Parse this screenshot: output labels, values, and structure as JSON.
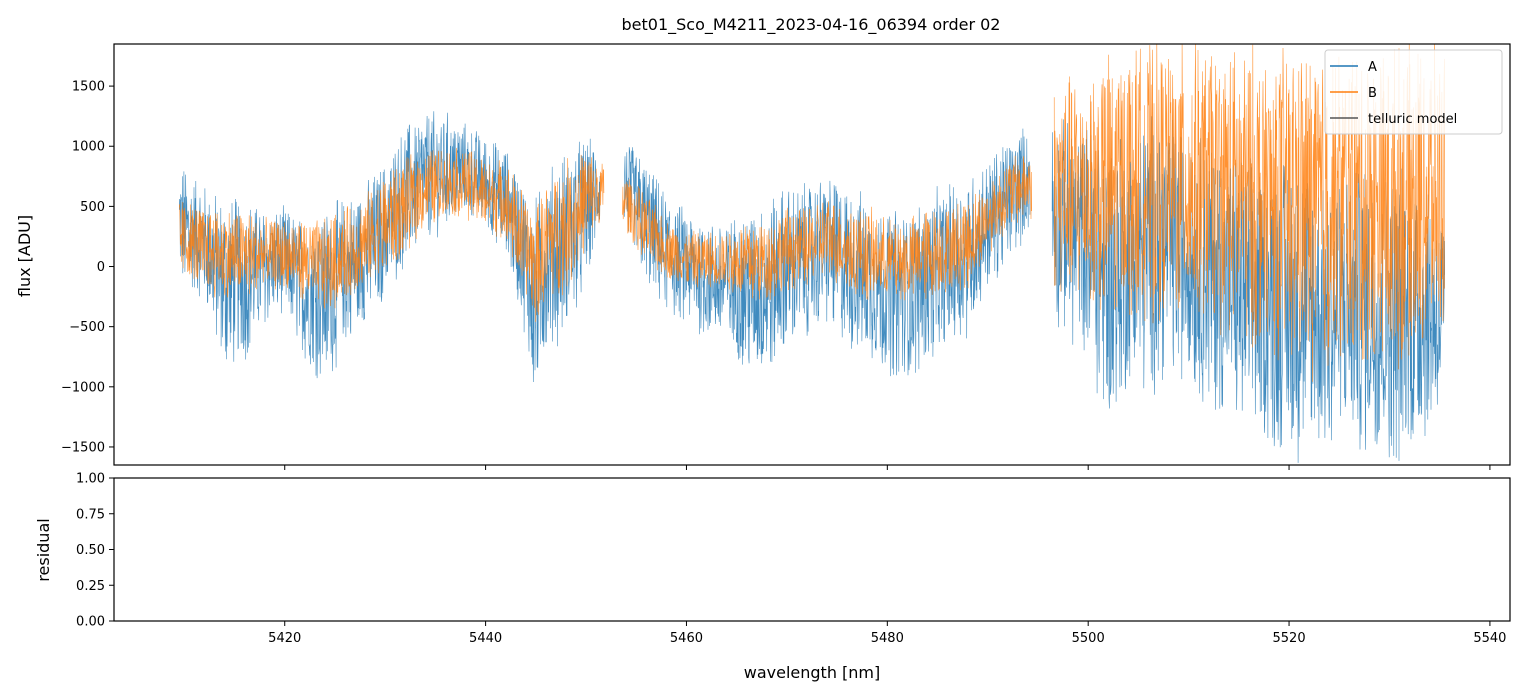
{
  "chart_data": [
    {
      "type": "line",
      "title": "bet01_Sco_M4211_2023-04-16_06394  order 02",
      "xlabel": "",
      "ylabel": "flux [ADU]",
      "xlim": [
        5403,
        5542
      ],
      "ylim": [
        -1650,
        1850
      ],
      "yticks": [
        -1500,
        -1000,
        -500,
        0,
        500,
        1000,
        1500
      ],
      "yticklabels": [
        "−1500",
        "−1000",
        "−500",
        "0",
        "500",
        "1000",
        "1500"
      ],
      "legend_location": "top-right",
      "grid": false,
      "series": [
        {
          "name": "A",
          "color": "#1f77b4",
          "x_range": [
            5409.5,
            5535.5
          ],
          "gaps": [
            [
              5451.4,
              5453.8
            ],
            [
              5494.2,
              5496.4
            ]
          ],
          "envelope_x": [
            5409.5,
            5412,
            5414,
            5416,
            5418,
            5420,
            5422,
            5424,
            5426,
            5428,
            5430,
            5432,
            5434,
            5436,
            5438,
            5440,
            5442,
            5444,
            5445,
            5446,
            5448,
            5450,
            5451.4,
            5453.8,
            5456,
            5458,
            5460,
            5462,
            5464,
            5466,
            5468,
            5470,
            5472,
            5474,
            5476,
            5478,
            5480,
            5482,
            5484,
            5486,
            5488,
            5490,
            5492,
            5494.2,
            5496.4,
            5498,
            5500,
            5502,
            5504,
            5506,
            5508,
            5510,
            5512,
            5514,
            5516,
            5518,
            5520,
            5522,
            5524,
            5526,
            5528,
            5530,
            5532,
            5534,
            5535.5
          ],
          "envelope_low": [
            -200,
            -300,
            -900,
            -800,
            -500,
            -400,
            -800,
            -1000,
            -700,
            -500,
            -300,
            0,
            200,
            300,
            400,
            300,
            100,
            -600,
            -1300,
            -700,
            -600,
            -200,
            300,
            300,
            -200,
            -400,
            -500,
            -600,
            -700,
            -900,
            -1000,
            -700,
            -600,
            -500,
            -700,
            -800,
            -900,
            -1000,
            -800,
            -700,
            -600,
            -200,
            0,
            300,
            -500,
            -600,
            -800,
            -1500,
            -1000,
            -1100,
            -900,
            -1000,
            -1200,
            -1300,
            -1400,
            -1500,
            -1650,
            -1650,
            -1650,
            -1500,
            -1600,
            -1650,
            -1650,
            -1400,
            -1300
          ],
          "envelope_high": [
            900,
            700,
            600,
            600,
            500,
            500,
            400,
            500,
            600,
            700,
            900,
            1200,
            1300,
            1300,
            1200,
            1100,
            1000,
            700,
            600,
            800,
            1000,
            1100,
            1000,
            1100,
            900,
            600,
            500,
            400,
            400,
            500,
            600,
            700,
            700,
            800,
            700,
            600,
            500,
            500,
            600,
            700,
            800,
            900,
            1100,
            1200,
            1300,
            1200,
            1200,
            1200,
            1100,
            1300,
            1300,
            1200,
            1100,
            1000,
            900,
            900,
            1000,
            900,
            900,
            800,
            900,
            800,
            900,
            700,
            500
          ]
        },
        {
          "name": "B",
          "color": "#ff7f0e",
          "x_range": [
            5409.5,
            5535.5
          ],
          "gaps": [
            [
              5451.8,
              5453.6
            ],
            [
              5494.4,
              5496.6
            ]
          ],
          "envelope_x": [
            5409.5,
            5412,
            5414,
            5416,
            5418,
            5420,
            5422,
            5424,
            5426,
            5428,
            5430,
            5432,
            5434,
            5436,
            5438,
            5440,
            5442,
            5444,
            5445,
            5446,
            5448,
            5450,
            5451.4,
            5453.8,
            5456,
            5458,
            5460,
            5462,
            5464,
            5466,
            5468,
            5470,
            5472,
            5474,
            5476,
            5478,
            5480,
            5482,
            5484,
            5486,
            5488,
            5490,
            5492,
            5494.2,
            5496.4,
            5498,
            5500,
            5502,
            5504,
            5506,
            5508,
            5510,
            5512,
            5514,
            5516,
            5518,
            5520,
            5522,
            5524,
            5526,
            5528,
            5530,
            5532,
            5534,
            5535.5
          ],
          "envelope_low": [
            -100,
            -200,
            -300,
            -300,
            -200,
            -200,
            -300,
            -400,
            -300,
            -200,
            -100,
            100,
            300,
            400,
            400,
            300,
            200,
            -300,
            -500,
            -300,
            -200,
            100,
            300,
            300,
            0,
            -100,
            -200,
            -200,
            -200,
            -300,
            -300,
            -200,
            -200,
            -100,
            -200,
            -300,
            -300,
            -300,
            -300,
            -200,
            -200,
            100,
            300,
            400,
            -200,
            -300,
            -400,
            -600,
            -400,
            -500,
            -400,
            -500,
            -500,
            -600,
            -700,
            -800,
            -800,
            -900,
            -900,
            -800,
            -900,
            -900,
            -800,
            -700,
            -700
          ],
          "envelope_high": [
            600,
            500,
            500,
            500,
            400,
            400,
            400,
            400,
            500,
            600,
            800,
            900,
            1000,
            1000,
            1000,
            900,
            900,
            600,
            500,
            700,
            900,
            1000,
            900,
            800,
            600,
            400,
            300,
            300,
            300,
            400,
            400,
            500,
            500,
            600,
            500,
            500,
            400,
            400,
            500,
            500,
            600,
            700,
            900,
            1000,
            1500,
            1600,
            1700,
            1800,
            1850,
            1850,
            1850,
            1850,
            1850,
            1850,
            1850,
            1850,
            1850,
            1850,
            1850,
            1850,
            1850,
            1850,
            1850,
            1850,
            1850
          ]
        },
        {
          "name": "telluric model",
          "color": "#555555"
        }
      ]
    },
    {
      "type": "line",
      "title": "",
      "xlabel": "wavelength [nm]",
      "ylabel": "residual",
      "xlim": [
        5403,
        5542
      ],
      "ylim": [
        0,
        1
      ],
      "xticks": [
        5420,
        5440,
        5460,
        5480,
        5500,
        5520,
        5540
      ],
      "xticklabels": [
        "5420",
        "5440",
        "5460",
        "5480",
        "5500",
        "5520",
        "5540"
      ],
      "yticks": [
        0,
        0.25,
        0.5,
        0.75,
        1.0
      ],
      "yticklabels": [
        "0.00",
        "0.25",
        "0.50",
        "0.75",
        "1.00"
      ],
      "grid": false,
      "series": []
    }
  ]
}
